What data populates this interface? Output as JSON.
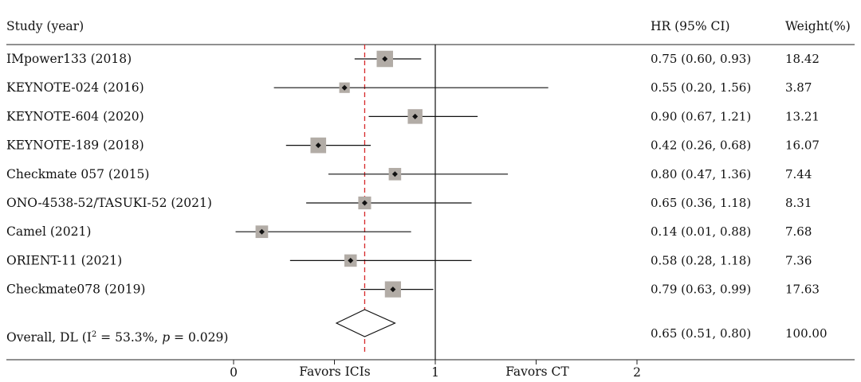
{
  "chart_data": {
    "type": "forest",
    "headers": {
      "study": "Study (year)",
      "hr": "HR (95% CI)",
      "weight": "Weight(%)"
    },
    "studies": [
      {
        "label": "IMpower133 (2018)",
        "hr": 0.75,
        "lo": 0.6,
        "hi": 0.93,
        "hr_text": "0.75 (0.60, 0.93)",
        "weight": 18.42,
        "weight_text": "18.42"
      },
      {
        "label": "KEYNOTE-024 (2016)",
        "hr": 0.55,
        "lo": 0.2,
        "hi": 1.56,
        "hr_text": "0.55 (0.20, 1.56)",
        "weight": 3.87,
        "weight_text": "3.87"
      },
      {
        "label": "KEYNOTE-604 (2020)",
        "hr": 0.9,
        "lo": 0.67,
        "hi": 1.21,
        "hr_text": "0.90 (0.67, 1.21)",
        "weight": 13.21,
        "weight_text": "13.21"
      },
      {
        "label": "KEYNOTE-189 (2018)",
        "hr": 0.42,
        "lo": 0.26,
        "hi": 0.68,
        "hr_text": "0.42 (0.26, 0.68)",
        "weight": 16.07,
        "weight_text": "16.07"
      },
      {
        "label": "Checkmate 057 (2015)",
        "hr": 0.8,
        "lo": 0.47,
        "hi": 1.36,
        "hr_text": "0.80 (0.47, 1.36)",
        "weight": 7.44,
        "weight_text": "7.44"
      },
      {
        "label": "ONO-4538-52/TASUKI-52 (2021)",
        "hr": 0.65,
        "lo": 0.36,
        "hi": 1.18,
        "hr_text": "0.65 (0.36, 1.18)",
        "weight": 8.31,
        "weight_text": "8.31"
      },
      {
        "label": "Camel (2021)",
        "hr": 0.14,
        "lo": 0.01,
        "hi": 0.88,
        "hr_text": "0.14 (0.01, 0.88)",
        "weight": 7.68,
        "weight_text": "7.68"
      },
      {
        "label": "ORIENT-11 (2021)",
        "hr": 0.58,
        "lo": 0.28,
        "hi": 1.18,
        "hr_text": "0.58 (0.28, 1.18)",
        "weight": 7.36,
        "weight_text": "7.36"
      },
      {
        "label": "Checkmate078 (2019)",
        "hr": 0.79,
        "lo": 0.63,
        "hi": 0.99,
        "hr_text": "0.79 (0.63, 0.99)",
        "weight": 17.63,
        "weight_text": "17.63"
      }
    ],
    "overall": {
      "label_prefix": "Overall, DL (I",
      "label_sup": "2",
      "label_mid": " = 53.3%, ",
      "label_p": "p",
      "label_end": " = 0.029)",
      "hr": 0.65,
      "lo": 0.51,
      "hi": 0.8,
      "hr_text": "0.65 (0.51, 0.80)",
      "weight_text": "100.00"
    },
    "x_axis": {
      "range": [
        0,
        2
      ],
      "ticks": [
        0,
        1,
        2
      ],
      "tick_labels": [
        "0",
        "1",
        "2"
      ]
    },
    "favors_left": "Favors ICIs",
    "favors_right": "Favors CT",
    "null_line": 1,
    "colors": {
      "box": "#b2aca6",
      "line": "#111111",
      "ref_line": "#d62728",
      "point": "#111111"
    }
  }
}
